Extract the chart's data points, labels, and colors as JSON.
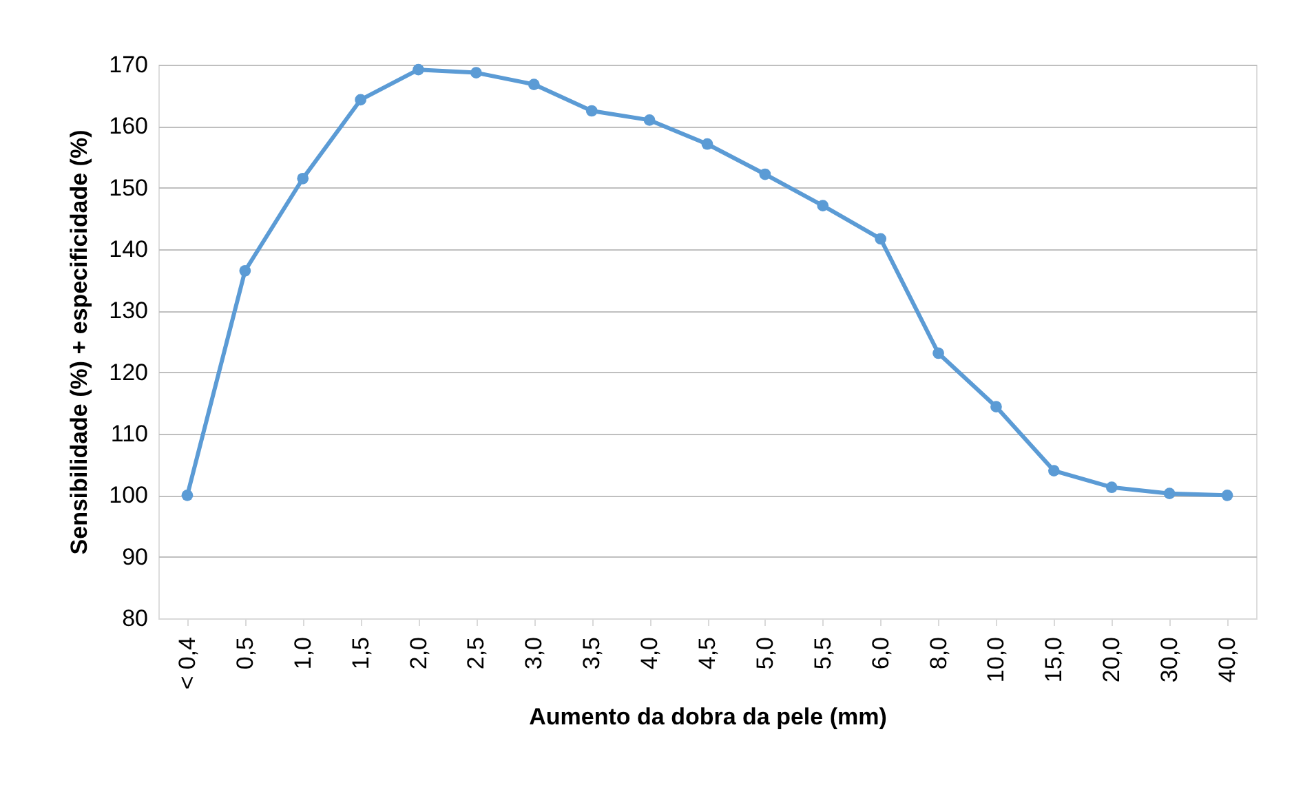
{
  "chart_data": {
    "type": "line",
    "xlabel": "Aumento da dobra da pele (mm)",
    "ylabel": "Sensibilidade (%) + especificidade (%)",
    "categories": [
      "< 0,4",
      "0,5",
      "1,0",
      "1,5",
      "2,0",
      "2,5",
      "3,0",
      "3,5",
      "4,0",
      "4,5",
      "5,0",
      "5,5",
      "6,0",
      "8,0",
      "10,0",
      "15,0",
      "20,0",
      "30,0",
      "40,0"
    ],
    "series": [
      {
        "color": "#5b9bd5",
        "values": [
          100,
          136.5,
          151.5,
          164.3,
          169.2,
          168.7,
          166.8,
          162.5,
          161.0,
          157.1,
          152.2,
          147.1,
          141.7,
          123.1,
          114.4,
          104.0,
          101.3,
          100.3,
          100.0
        ]
      }
    ],
    "ylim": [
      80,
      170
    ],
    "yticks": [
      80,
      90,
      100,
      110,
      120,
      130,
      140,
      150,
      160,
      170
    ],
    "grid": "y",
    "marker": "circle"
  }
}
